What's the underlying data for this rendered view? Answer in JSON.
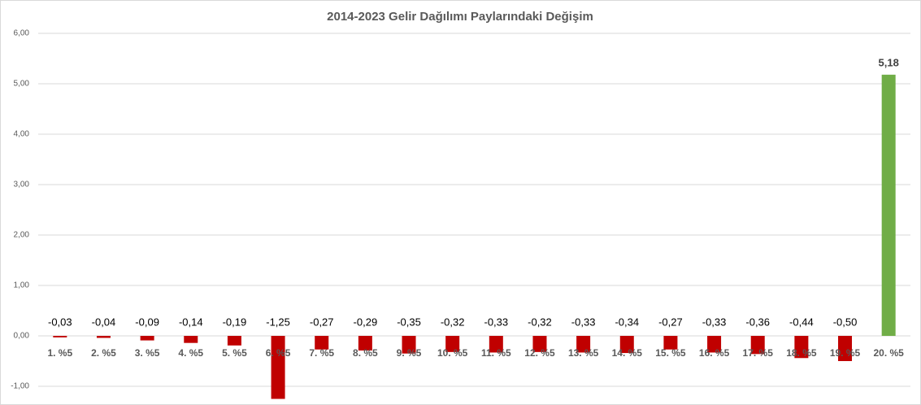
{
  "chart_data": {
    "type": "bar",
    "title": "2014-2023 Gelir Dağılımı Paylarındaki Değişim",
    "categories": [
      "1. %5",
      "2. %5",
      "3. %5",
      "4. %5",
      "5. %5",
      "6. %5",
      "7. %5",
      "8. %5",
      "9. %5",
      "10. %5",
      "11. %5",
      "12. %5",
      "13. %5",
      "14. %5",
      "15. %5",
      "16. %5",
      "17. %5",
      "18. %5",
      "19. %5",
      "20. %5"
    ],
    "values": [
      -0.03,
      -0.04,
      -0.09,
      -0.14,
      -0.19,
      -1.25,
      -0.27,
      -0.29,
      -0.35,
      -0.32,
      -0.33,
      -0.32,
      -0.33,
      -0.34,
      -0.27,
      -0.33,
      -0.36,
      -0.44,
      -0.5,
      5.18
    ],
    "value_labels": [
      "-0,03",
      "-0,04",
      "-0,09",
      "-0,14",
      "-0,19",
      "-1,25",
      "-0,27",
      "-0,29",
      "-0,35",
      "-0,32",
      "-0,33",
      "-0,32",
      "-0,33",
      "-0,34",
      "-0,27",
      "-0,33",
      "-0,36",
      "-0,44",
      "-0,50",
      "5,18"
    ],
    "colors": [
      "#c00000",
      "#c00000",
      "#c00000",
      "#c00000",
      "#c00000",
      "#c00000",
      "#c00000",
      "#c00000",
      "#c00000",
      "#c00000",
      "#c00000",
      "#c00000",
      "#c00000",
      "#c00000",
      "#c00000",
      "#c00000",
      "#c00000",
      "#c00000",
      "#c00000",
      "#70ad47"
    ],
    "ylim": [
      -1,
      6
    ],
    "yticks": [
      {
        "value": -1,
        "label": "-1,00"
      },
      {
        "value": 0,
        "label": "0,00"
      },
      {
        "value": 1,
        "label": "1,00"
      },
      {
        "value": 2,
        "label": "2,00"
      },
      {
        "value": 3,
        "label": "3,00"
      },
      {
        "value": 4,
        "label": "4,00"
      },
      {
        "value": 5,
        "label": "5,00"
      },
      {
        "value": 6,
        "label": "6,00"
      }
    ],
    "grid": true
  }
}
